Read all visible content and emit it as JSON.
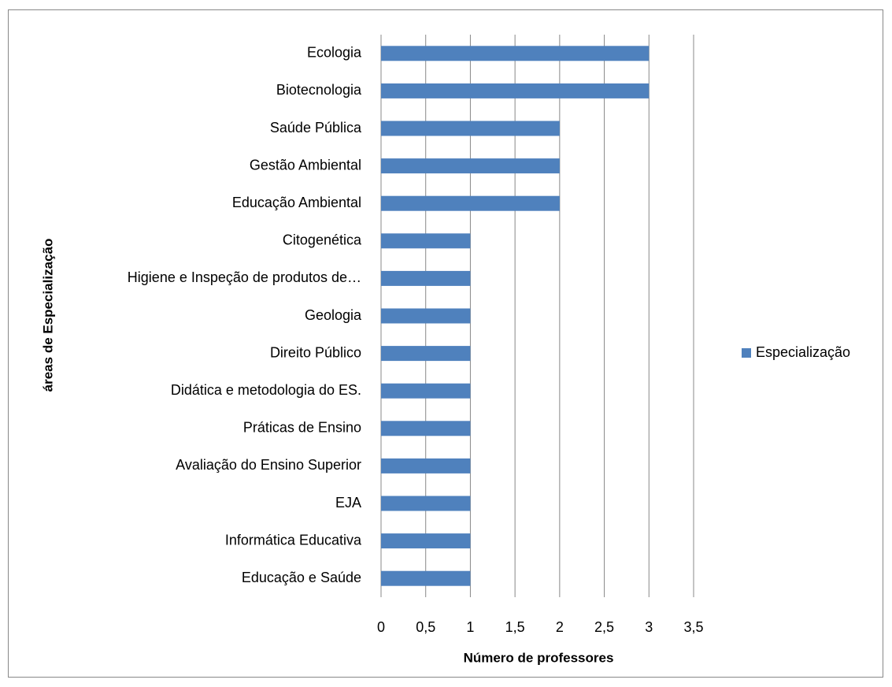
{
  "chart_data": {
    "type": "bar",
    "orientation": "horizontal",
    "categories": [
      "Ecologia",
      "Biotecnologia",
      "Saúde Pública",
      "Gestão Ambiental",
      "Educação Ambiental",
      "Citogenética",
      "Higiene e Inspeção de produtos de…",
      "Geologia",
      "Direito Público",
      "Didática e metodologia do ES.",
      "Práticas de Ensino",
      "Avaliação do Ensino Superior",
      "EJA",
      "Informática Educativa",
      "Educação e Saúde"
    ],
    "series": [
      {
        "name": "Especialização",
        "color": "#4f81bd",
        "values": [
          3,
          3,
          2,
          2,
          2,
          1,
          1,
          1,
          1,
          1,
          1,
          1,
          1,
          1,
          1
        ]
      }
    ],
    "xlabel": "Número de professores",
    "ylabel": "áreas de Especialização",
    "xlim": [
      0,
      3.5
    ],
    "xticks": [
      0,
      {
        "value": 0.5,
        "label": "0,5"
      },
      1,
      {
        "value": 1.5,
        "label": "1,5"
      },
      2,
      {
        "value": 2.5,
        "label": "2,5"
      },
      3,
      {
        "value": 3.5,
        "label": "3,5"
      }
    ],
    "grid": true,
    "legend": "right"
  }
}
